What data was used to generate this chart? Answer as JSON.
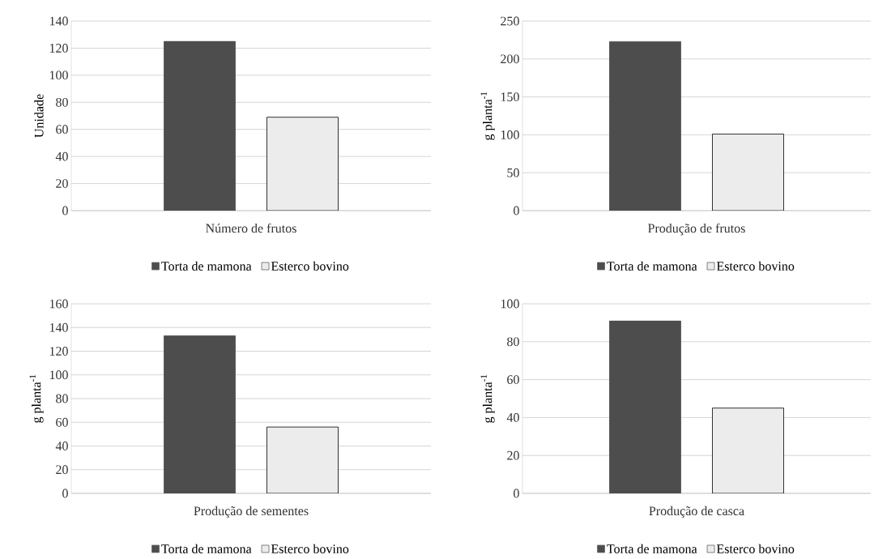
{
  "chart_data": [
    {
      "type": "bar",
      "categories": [
        "Número de frutos"
      ],
      "ylabel": "Unidade",
      "ylim": [
        0,
        140
      ],
      "yticks": [
        0,
        20,
        40,
        60,
        80,
        100,
        120,
        140
      ],
      "grid": "y",
      "legend": "bottom",
      "series": [
        {
          "name": "Torta de mamona",
          "color": "#4d4d4d",
          "values": [
            125
          ]
        },
        {
          "name": "Esterco bovino",
          "color": "#ececec",
          "values": [
            69
          ]
        }
      ]
    },
    {
      "type": "bar",
      "categories": [
        "Produção de frutos"
      ],
      "ylabel": "g planta$^{-1}$",
      "ylim": [
        0,
        250
      ],
      "yticks": [
        0,
        50,
        100,
        150,
        200,
        250
      ],
      "grid": "y",
      "legend": "bottom",
      "series": [
        {
          "name": "Torta de mamona",
          "color": "#4d4d4d",
          "values": [
            223
          ]
        },
        {
          "name": "Esterco bovino",
          "color": "#ececec",
          "values": [
            101
          ]
        }
      ]
    },
    {
      "type": "bar",
      "categories": [
        "Produção de sementes"
      ],
      "ylabel": "g planta$^{-1}$",
      "ylim": [
        0,
        160
      ],
      "yticks": [
        0,
        20,
        40,
        60,
        80,
        100,
        120,
        140,
        160
      ],
      "grid": "y",
      "legend": "bottom",
      "series": [
        {
          "name": "Torta de mamona",
          "color": "#4d4d4d",
          "values": [
            133
          ]
        },
        {
          "name": "Esterco bovino",
          "color": "#ececec",
          "values": [
            56
          ]
        }
      ]
    },
    {
      "type": "bar",
      "categories": [
        "Produção de casca"
      ],
      "ylabel": "g planta$^{-1}$",
      "ylim": [
        0,
        100
      ],
      "yticks": [
        0,
        20,
        40,
        60,
        80,
        100
      ],
      "grid": "y",
      "legend": "bottom",
      "series": [
        {
          "name": "Torta de mamona",
          "color": "#4d4d4d",
          "values": [
            91
          ]
        },
        {
          "name": "Esterco bovino",
          "color": "#ececec",
          "values": [
            45
          ]
        }
      ]
    }
  ]
}
